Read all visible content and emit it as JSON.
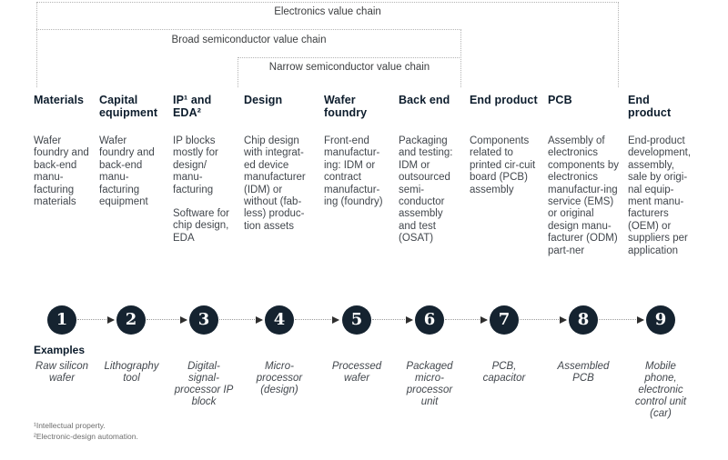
{
  "brackets": {
    "electronics": "Electronics value chain",
    "broad": "Broad semiconductor value chain",
    "narrow": "Narrow semiconductor value chain"
  },
  "examples_heading": "Examples",
  "steps": [
    {
      "number": "1",
      "title": "Materials",
      "desc": "Wafer foundry and back-end manu-facturing materials",
      "example": "Raw silicon wafer"
    },
    {
      "number": "2",
      "title": "Capital equipment",
      "desc": "Wafer foundry and back-end manu-facturing equipment",
      "example": "Lithography tool"
    },
    {
      "number": "3",
      "title": "IP¹ and EDA²",
      "desc": "IP blocks mostly for design/ manu-facturing",
      "desc2": "Software for chip design, EDA",
      "example": "Digital-signal-processor IP block"
    },
    {
      "number": "4",
      "title": "Design",
      "desc": "Chip design with integrat-ed device manufacturer (IDM) or without (fab-less) produc-tion assets",
      "example": "Micro-processor (design)"
    },
    {
      "number": "5",
      "title": "Wafer foundry",
      "desc": "Front-end manufactur-ing: IDM or contract manufactur-ing (foundry)",
      "example": "Processed wafer"
    },
    {
      "number": "6",
      "title": "Back end",
      "desc": "Packaging and testing: IDM or outsourced semi-conductor assembly and test (OSAT)",
      "example": "Packaged micro-processor unit"
    },
    {
      "number": "7",
      "title": "End product",
      "desc": "Components related to printed cir-cuit board (PCB) assembly",
      "example": "PCB, capacitor"
    },
    {
      "number": "8",
      "title": "PCB",
      "desc": "Assembly of electronics components by electronics manufactur-ing service (EMS) or original design manu-facturer (ODM) part-ner",
      "example": "Assembled PCB"
    },
    {
      "number": "9",
      "title": "End product",
      "desc": "End-product development, assembly, sale by origi-nal equip-ment manu-facturers (OEM) or suppliers per application",
      "example": "Mobile phone, electronic control unit (car)"
    }
  ],
  "footnotes": [
    "¹Intellectual property.",
    "²Electronic-design automation."
  ],
  "colors": {
    "circle_fill": "#152330",
    "header_text": "#0c1c2c",
    "body_text": "#42474d",
    "bracket_dotted_line": "#b4b4b4",
    "arrow_line": "#9b9b9b",
    "arrowhead": "#2e2e2e",
    "footnote_text": "#6e6e6e",
    "background": "#ffffff"
  }
}
